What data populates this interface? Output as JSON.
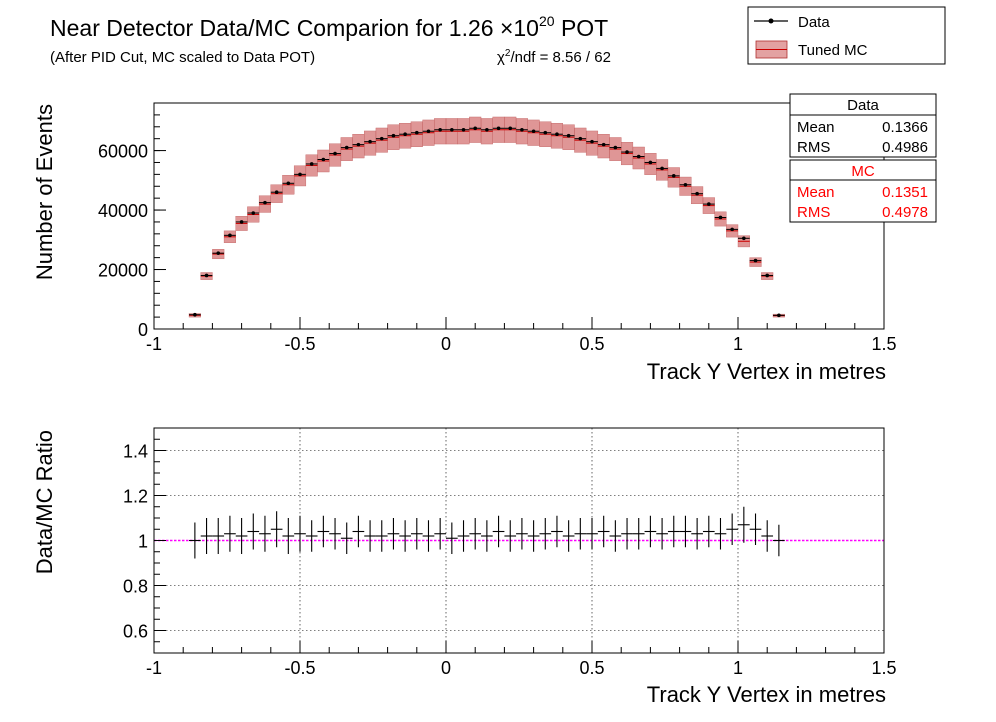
{
  "header": {
    "title_prefix": "Near Detector Data/MC Comparion for 1.26 ×10",
    "title_exponent": "20",
    "title_suffix": " POT",
    "subtitle": "(After PID Cut, MC scaled to Data POT)",
    "chi2_symbol": "χ",
    "chi2_sup": "2",
    "chi2_rest": "/ndf = 8.56 / 62"
  },
  "legend": {
    "items": [
      {
        "label": "Data",
        "color": "#000000"
      },
      {
        "label": "Tuned MC",
        "color": "#cc4444"
      }
    ]
  },
  "stats": {
    "data": {
      "title": "Data",
      "rows": [
        {
          "label": "Mean",
          "value": "0.1366"
        },
        {
          "label": "RMS",
          "value": "0.4986"
        }
      ],
      "color": "#000000"
    },
    "mc": {
      "title": "MC",
      "rows": [
        {
          "label": "Mean",
          "value": "0.1351"
        },
        {
          "label": "RMS",
          "value": "0.4978"
        }
      ],
      "color": "#ff0000"
    }
  },
  "chart_data": [
    {
      "type": "histogram",
      "xlabel": "Track Y Vertex in metres",
      "ylabel": "Number of Events",
      "xlim": [
        -1,
        1.5
      ],
      "ylim": [
        0,
        76000
      ],
      "x_ticks": [
        "-1",
        "-0.5",
        "0",
        "0.5",
        "1",
        "1.5"
      ],
      "y_ticks": [
        "0",
        "20000",
        "40000",
        "60000"
      ],
      "grid": false,
      "bin_width": 0.04,
      "series": [
        {
          "name": "Data",
          "x": [
            -0.86,
            -0.82,
            -0.78,
            -0.74,
            -0.7,
            -0.66,
            -0.62,
            -0.58,
            -0.54,
            -0.5,
            -0.46,
            -0.42,
            -0.38,
            -0.34,
            -0.3,
            -0.26,
            -0.22,
            -0.18,
            -0.14,
            -0.1,
            -0.06,
            -0.02,
            0.02,
            0.06,
            0.1,
            0.14,
            0.18,
            0.22,
            0.26,
            0.3,
            0.34,
            0.38,
            0.42,
            0.46,
            0.5,
            0.54,
            0.58,
            0.62,
            0.66,
            0.7,
            0.74,
            0.78,
            0.82,
            0.86,
            0.9,
            0.94,
            0.98,
            1.02,
            1.06,
            1.1,
            1.14
          ],
          "y": [
            4800,
            18000,
            25500,
            31500,
            36000,
            39000,
            42500,
            46000,
            49000,
            52000,
            55500,
            57000,
            59000,
            61000,
            62000,
            63000,
            64000,
            65000,
            65500,
            66000,
            66500,
            67000,
            67000,
            67000,
            67500,
            67000,
            67500,
            67500,
            67000,
            66500,
            66000,
            65500,
            65000,
            64000,
            63000,
            62000,
            61000,
            59500,
            58000,
            56000,
            54000,
            51500,
            48500,
            45500,
            42000,
            37500,
            33500,
            30500,
            23000,
            18000,
            4600
          ]
        },
        {
          "name": "Tuned MC",
          "x": [
            -0.86,
            -0.82,
            -0.78,
            -0.74,
            -0.7,
            -0.66,
            -0.62,
            -0.58,
            -0.54,
            -0.5,
            -0.46,
            -0.42,
            -0.38,
            -0.34,
            -0.3,
            -0.26,
            -0.22,
            -0.18,
            -0.14,
            -0.1,
            -0.06,
            -0.02,
            0.02,
            0.06,
            0.1,
            0.14,
            0.18,
            0.22,
            0.26,
            0.3,
            0.34,
            0.38,
            0.42,
            0.46,
            0.5,
            0.54,
            0.58,
            0.62,
            0.66,
            0.7,
            0.74,
            0.78,
            0.82,
            0.86,
            0.9,
            0.94,
            0.98,
            1.02,
            1.06,
            1.1,
            1.14
          ],
          "y": [
            4600,
            17800,
            25200,
            31000,
            35500,
            38500,
            42000,
            45500,
            48500,
            51500,
            55000,
            56500,
            58500,
            60500,
            61500,
            62500,
            63500,
            64500,
            65000,
            65500,
            66000,
            66500,
            66500,
            66500,
            67000,
            66500,
            67000,
            67000,
            66500,
            66000,
            65500,
            65000,
            64500,
            63500,
            62500,
            61500,
            60500,
            59000,
            57500,
            55500,
            53500,
            51000,
            48000,
            45000,
            41500,
            37000,
            33000,
            29500,
            22500,
            17800,
            4500
          ],
          "band": [
            600,
            1200,
            1600,
            2000,
            2400,
            2600,
            2800,
            3000,
            3200,
            3400,
            3600,
            3700,
            3800,
            3900,
            4000,
            4100,
            4100,
            4200,
            4200,
            4200,
            4300,
            4300,
            4300,
            4300,
            4300,
            4300,
            4300,
            4300,
            4300,
            4300,
            4200,
            4200,
            4200,
            4100,
            4100,
            4000,
            3900,
            3800,
            3700,
            3600,
            3500,
            3300,
            3100,
            2900,
            2700,
            2400,
            2100,
            1900,
            1500,
            1200,
            500
          ]
        }
      ]
    },
    {
      "type": "scatter",
      "xlabel": "Track Y Vertex in metres",
      "ylabel": "Data/MC Ratio",
      "xlim": [
        -1,
        1.5
      ],
      "ylim": [
        0.5,
        1.5
      ],
      "x_ticks": [
        "-1",
        "-0.5",
        "0",
        "0.5",
        "1",
        "1.5"
      ],
      "y_ticks": [
        "0.6",
        "0.8",
        "1",
        "1.2",
        "1.4"
      ],
      "grid": true,
      "reference_line": {
        "y": 1,
        "color": "#ff00ff"
      },
      "series": [
        {
          "name": "Data/MC",
          "x": [
            -0.86,
            -0.82,
            -0.78,
            -0.74,
            -0.7,
            -0.66,
            -0.62,
            -0.58,
            -0.54,
            -0.5,
            -0.46,
            -0.42,
            -0.38,
            -0.34,
            -0.3,
            -0.26,
            -0.22,
            -0.18,
            -0.14,
            -0.1,
            -0.06,
            -0.02,
            0.02,
            0.06,
            0.1,
            0.14,
            0.18,
            0.22,
            0.26,
            0.3,
            0.34,
            0.38,
            0.42,
            0.46,
            0.5,
            0.54,
            0.58,
            0.62,
            0.66,
            0.7,
            0.74,
            0.78,
            0.82,
            0.86,
            0.9,
            0.94,
            0.98,
            1.02,
            1.06,
            1.1,
            1.14
          ],
          "y": [
            1.0,
            1.02,
            1.02,
            1.03,
            1.02,
            1.04,
            1.03,
            1.05,
            1.02,
            1.03,
            1.02,
            1.04,
            1.03,
            1.01,
            1.04,
            1.02,
            1.02,
            1.03,
            1.02,
            1.03,
            1.02,
            1.03,
            1.01,
            1.02,
            1.03,
            1.02,
            1.04,
            1.02,
            1.03,
            1.02,
            1.03,
            1.04,
            1.02,
            1.03,
            1.03,
            1.04,
            1.02,
            1.03,
            1.03,
            1.04,
            1.03,
            1.04,
            1.04,
            1.03,
            1.04,
            1.03,
            1.05,
            1.07,
            1.05,
            1.02,
            1.0
          ],
          "err": [
            0.08,
            0.08,
            0.08,
            0.08,
            0.08,
            0.08,
            0.08,
            0.08,
            0.08,
            0.08,
            0.07,
            0.07,
            0.07,
            0.07,
            0.07,
            0.07,
            0.07,
            0.07,
            0.07,
            0.07,
            0.07,
            0.07,
            0.07,
            0.07,
            0.07,
            0.07,
            0.07,
            0.07,
            0.07,
            0.07,
            0.07,
            0.07,
            0.07,
            0.07,
            0.07,
            0.07,
            0.07,
            0.07,
            0.07,
            0.07,
            0.07,
            0.07,
            0.07,
            0.07,
            0.07,
            0.07,
            0.07,
            0.08,
            0.07,
            0.07,
            0.07
          ]
        }
      ]
    }
  ]
}
